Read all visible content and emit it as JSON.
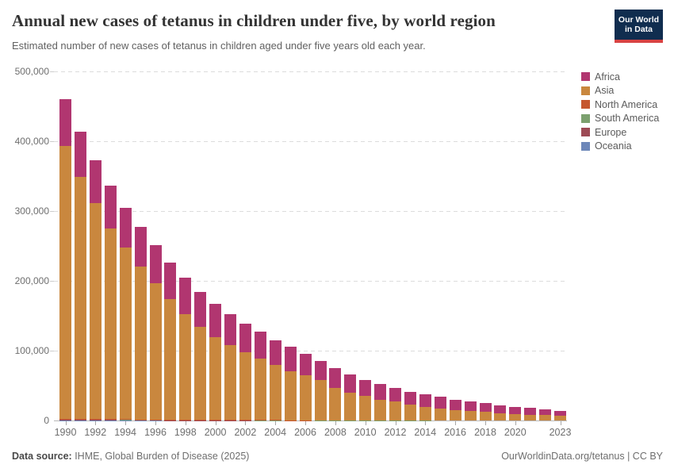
{
  "header": {
    "title": "Annual new cases of tetanus in children under five, by world region",
    "subtitle": "Estimated number of new cases of tetanus in children aged under five years old each year."
  },
  "logo": {
    "line1": "Our World",
    "line2": "in Data"
  },
  "colors": {
    "africa": "#B13670",
    "asia": "#C9873E",
    "north_america": "#C5572F",
    "south_america": "#7CA06E",
    "europe": "#9D4A55",
    "oceania": "#6D87B9",
    "logo_bg": "#102D4F",
    "logo_stripe": "#D84343"
  },
  "legend": {
    "items": [
      {
        "label": "Africa",
        "color": "#B13670"
      },
      {
        "label": "Asia",
        "color": "#C9873E"
      },
      {
        "label": "North America",
        "color": "#C5572F"
      },
      {
        "label": "South America",
        "color": "#7CA06E"
      },
      {
        "label": "Europe",
        "color": "#9D4A55"
      },
      {
        "label": "Oceania",
        "color": "#6D87B9"
      }
    ]
  },
  "chart_data": {
    "type": "bar",
    "stacked": true,
    "title": "Annual new cases of tetanus in children under five, by world region",
    "xlabel": "",
    "ylabel": "",
    "ylim": [
      0,
      500000
    ],
    "grid": "horizontal-dashed",
    "legend_position": "right",
    "x": [
      1990,
      1991,
      1992,
      1993,
      1994,
      1995,
      1996,
      1997,
      1998,
      1999,
      2000,
      2001,
      2002,
      2003,
      2004,
      2005,
      2006,
      2007,
      2008,
      2009,
      2010,
      2011,
      2012,
      2013,
      2014,
      2015,
      2016,
      2017,
      2018,
      2019,
      2020,
      2021,
      2022,
      2023
    ],
    "x_tick_years": [
      1990,
      1992,
      1994,
      1996,
      1998,
      2000,
      2002,
      2004,
      2006,
      2008,
      2010,
      2012,
      2014,
      2016,
      2018,
      2020,
      2023
    ],
    "y_ticks": [
      {
        "value": 0,
        "label": "0"
      },
      {
        "value": 100000,
        "label": "100,000"
      },
      {
        "value": 200000,
        "label": "200,000"
      },
      {
        "value": 300000,
        "label": "300,000"
      },
      {
        "value": 400000,
        "label": "400,000"
      },
      {
        "value": 500000,
        "label": "500,000"
      }
    ],
    "series": [
      {
        "name": "Africa",
        "key": "africa",
        "color": "#B13670",
        "values": [
          66500,
          64500,
          62000,
          61500,
          57000,
          57500,
          53800,
          52800,
          52000,
          49500,
          47800,
          44500,
          40800,
          39000,
          36000,
          35500,
          31300,
          27700,
          28000,
          25500,
          23000,
          22500,
          19500,
          18200,
          17800,
          17000,
          14800,
          14100,
          12500,
          11400,
          10100,
          9400,
          8400,
          6700
        ]
      },
      {
        "name": "Asia",
        "key": "asia",
        "color": "#C9873E",
        "values": [
          391000,
          347000,
          309000,
          273000,
          246000,
          218500,
          195500,
          172500,
          151000,
          133000,
          118000,
          107000,
          97500,
          88000,
          78500,
          70000,
          64000,
          57000,
          46500,
          39500,
          34500,
          29500,
          26500,
          23000,
          19500,
          17000,
          15000,
          13500,
          12000,
          10500,
          9500,
          8300,
          7400,
          6500
        ]
      },
      {
        "name": "North America",
        "key": "north_america",
        "color": "#C5572F",
        "values": [
          250,
          240,
          230,
          220,
          200,
          190,
          180,
          170,
          160,
          150,
          140,
          130,
          120,
          110,
          100,
          95,
          90,
          85,
          80,
          75,
          70,
          65,
          60,
          55,
          50,
          48,
          45,
          42,
          40,
          38,
          35,
          32,
          30,
          28
        ]
      },
      {
        "name": "South America",
        "key": "south_america",
        "color": "#7CA06E",
        "values": [
          1300,
          1200,
          1100,
          1000,
          900,
          820,
          740,
          680,
          620,
          560,
          460,
          410,
          360,
          310,
          280,
          250,
          220,
          200,
          180,
          160,
          140,
          125,
          110,
          100,
          90,
          80,
          72,
          65,
          58,
          52,
          47,
          42,
          38,
          34
        ]
      },
      {
        "name": "Europe",
        "key": "europe",
        "color": "#9D4A55",
        "values": [
          900,
          850,
          800,
          720,
          640,
          570,
          510,
          460,
          410,
          360,
          310,
          260,
          225,
          200,
          180,
          160,
          140,
          125,
          110,
          95,
          85,
          75,
          65,
          58,
          52,
          46,
          41,
          37,
          33,
          30,
          27,
          24,
          22,
          20
        ]
      },
      {
        "name": "Oceania",
        "key": "oceania",
        "color": "#6D87B9",
        "values": [
          120,
          115,
          110,
          105,
          100,
          95,
          90,
          85,
          80,
          75,
          70,
          65,
          60,
          55,
          50,
          48,
          45,
          42,
          40,
          38,
          35,
          32,
          30,
          28,
          26,
          24,
          22,
          20,
          19,
          18,
          17,
          16,
          15,
          14
        ]
      }
    ]
  },
  "footer": {
    "source_label": "Data source:",
    "source_text": " IHME, Global Burden of Disease (2025)",
    "right_text": "OurWorldinData.org/tetanus | CC BY"
  }
}
